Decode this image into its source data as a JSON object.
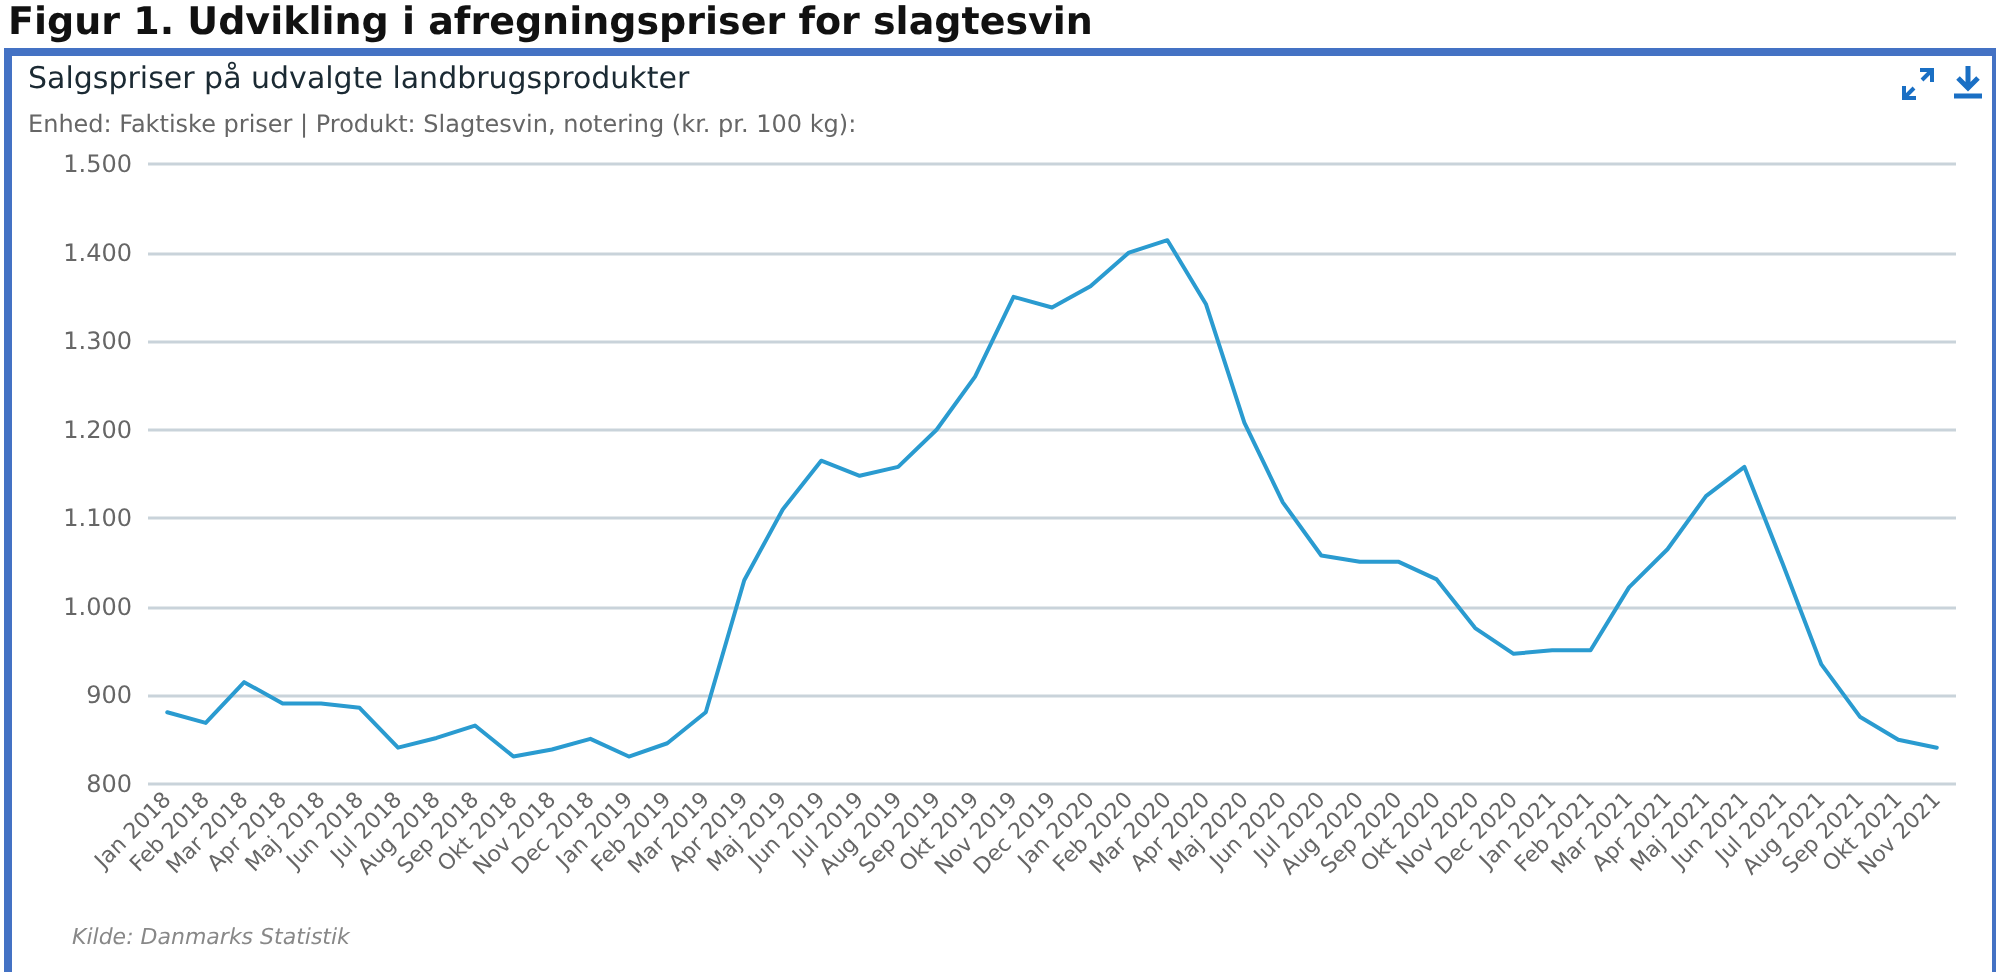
{
  "chart_data": {
    "type": "line",
    "title": "Salgspriser på udvalgte landbrugsprodukter",
    "subtitle": "Enhed: Faktiske priser | Produkt: Slagtesvin, notering (kr. pr. 100 kg):",
    "annotations": [
      "Figur 1. Udvikling i afregningspriser for slagtesvin",
      "Kilde: Danmarks Statistik"
    ],
    "categories": [
      "Jan 2018",
      "Feb 2018",
      "Mar 2018",
      "Apr 2018",
      "Maj 2018",
      "Jun 2018",
      "Jul 2018",
      "Aug 2018",
      "Sep 2018",
      "Okt 2018",
      "Nov 2018",
      "Dec 2018",
      "Jan 2019",
      "Feb 2019",
      "Mar 2019",
      "Apr 2019",
      "Maj 2019",
      "Jun 2019",
      "Jul 2019",
      "Aug 2019",
      "Sep 2019",
      "Okt 2019",
      "Nov 2019",
      "Dec 2019",
      "Jan 2020",
      "Feb 2020",
      "Mar 2020",
      "Apr 2020",
      "Maj 2020",
      "Jun 2020",
      "Jul 2020",
      "Aug 2020",
      "Sep 2020",
      "Okt 2020",
      "Nov 2020",
      "Dec 2020",
      "Jan 2021",
      "Feb 2021",
      "Mar 2021",
      "Apr 2021",
      "Maj 2021",
      "Jun 2021",
      "Jul 2021",
      "Aug 2021",
      "Sep 2021",
      "Okt 2021",
      "Nov 2021"
    ],
    "series": [
      {
        "color": "#2a9bd0",
        "values": [
          881,
          869,
          915,
          891,
          891,
          886,
          841,
          852,
          866,
          831,
          839,
          851,
          831,
          846,
          881,
          1030,
          1110,
          1165,
          1148,
          1158,
          1200,
          1260,
          1350,
          1338,
          1362,
          1400,
          1414,
          1342,
          1208,
          1118,
          1058,
          1051,
          1051,
          1031,
          976,
          947,
          951,
          951,
          1022,
          1065,
          1125,
          1158,
          1048,
          935,
          876,
          850,
          841
        ]
      }
    ],
    "ylim": [
      800,
      1500
    ],
    "yticks": [
      {
        "value": 800,
        "label": "800"
      },
      {
        "value": 900,
        "label": "900"
      },
      {
        "value": 1000,
        "label": "1.000"
      },
      {
        "value": 1100,
        "label": "1.100"
      },
      {
        "value": 1200,
        "label": "1.200"
      },
      {
        "value": 1300,
        "label": "1.300"
      },
      {
        "value": 1400,
        "label": "1.400"
      },
      {
        "value": 1500,
        "label": "1.500"
      }
    ],
    "grid": "y",
    "marker": "none",
    "line_style": "solid"
  }
}
